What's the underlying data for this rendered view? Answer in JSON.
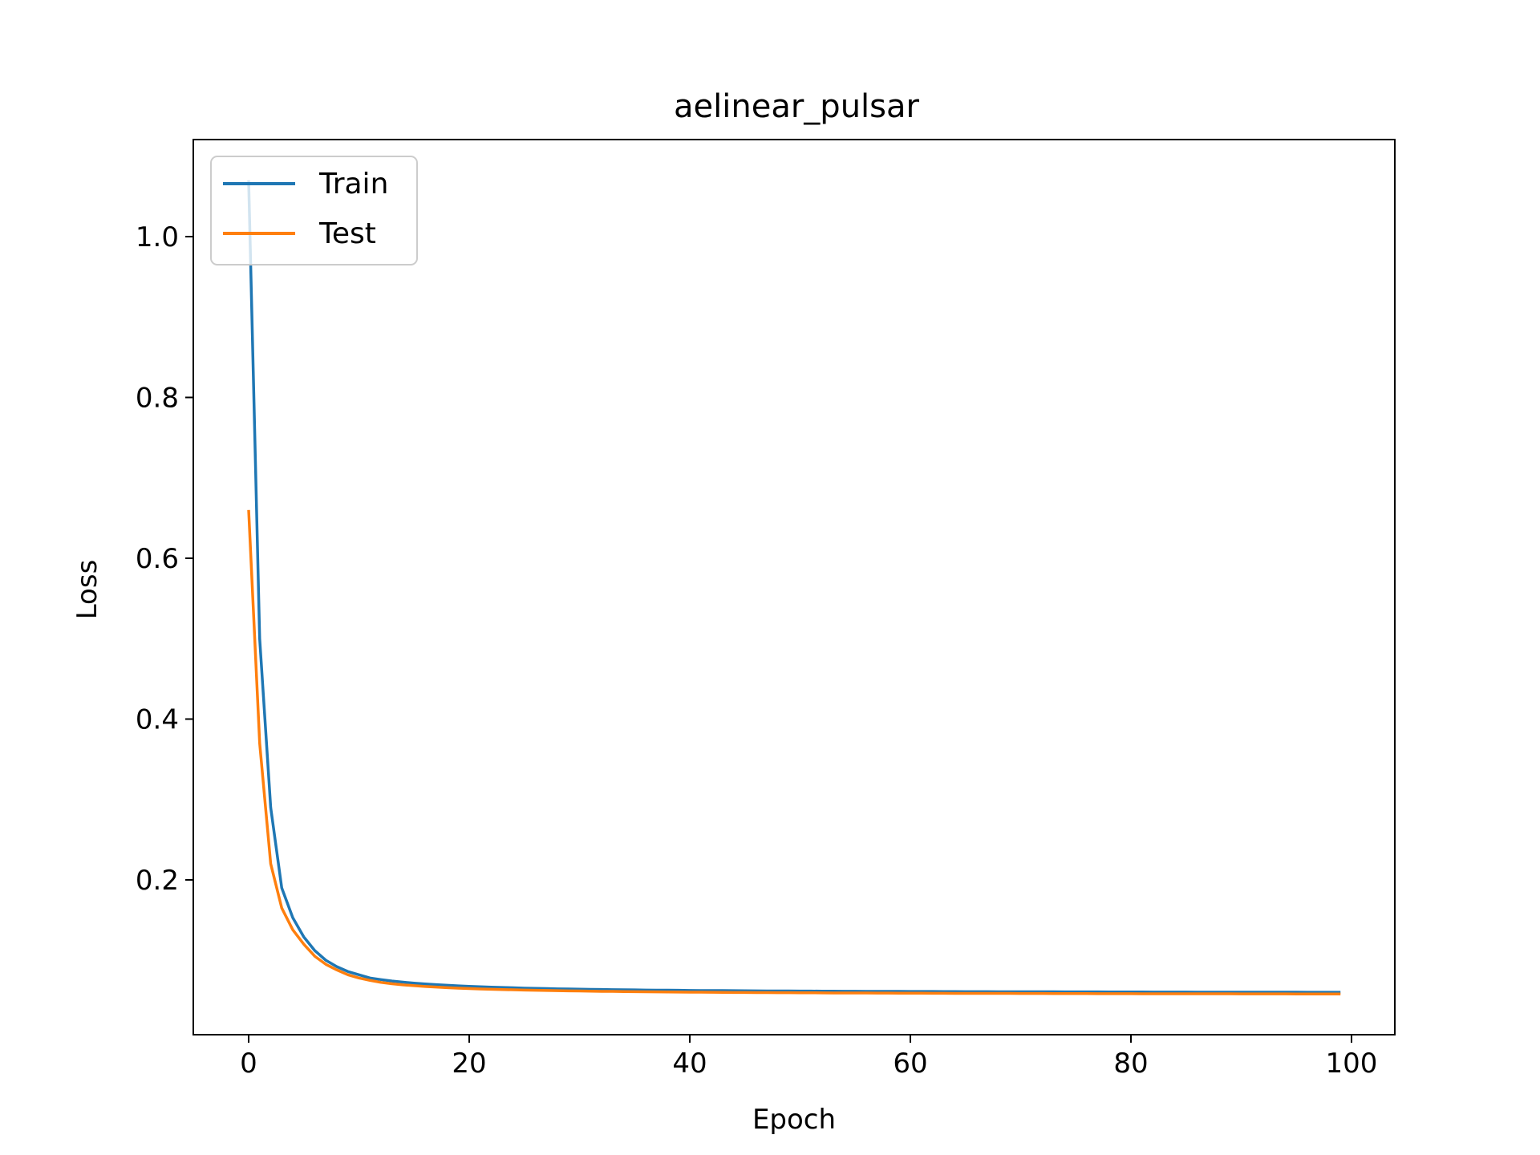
{
  "chart_data": {
    "type": "line",
    "title": "aelinear_pulsar",
    "xlabel": "Epoch",
    "ylabel": "Loss",
    "xlim": [
      -5,
      104
    ],
    "ylim": [
      0.01,
      1.12
    ],
    "xticks": [
      0,
      20,
      40,
      60,
      80,
      100
    ],
    "yticks": [
      0.2,
      0.4,
      0.6,
      0.8,
      1.0
    ],
    "xtick_labels": [
      "0",
      "20",
      "40",
      "60",
      "80",
      "100"
    ],
    "ytick_labels": [
      "0.2",
      "0.4",
      "0.6",
      "0.8",
      "1.0"
    ],
    "grid": false,
    "legend_position": "upper-left",
    "x": [
      0,
      1,
      2,
      3,
      4,
      5,
      6,
      7,
      8,
      9,
      10,
      11,
      12,
      13,
      14,
      15,
      16,
      17,
      18,
      19,
      20,
      21,
      22,
      23,
      24,
      25,
      26,
      27,
      28,
      29,
      30,
      31,
      32,
      33,
      34,
      35,
      36,
      37,
      38,
      39,
      40,
      41,
      42,
      43,
      44,
      45,
      46,
      47,
      48,
      49,
      50,
      51,
      52,
      53,
      54,
      55,
      56,
      57,
      58,
      59,
      60,
      61,
      62,
      63,
      64,
      65,
      66,
      67,
      68,
      69,
      70,
      71,
      72,
      73,
      74,
      75,
      76,
      77,
      78,
      79,
      80,
      81,
      82,
      83,
      84,
      85,
      86,
      87,
      88,
      89,
      90,
      91,
      92,
      93,
      94,
      95,
      96,
      97,
      98,
      99
    ],
    "series": [
      {
        "name": "Train",
        "color": "#1f77b4",
        "values": [
          1.07,
          0.5,
          0.29,
          0.19,
          0.153,
          0.129,
          0.112,
          0.1,
          0.092,
          0.086,
          0.082,
          0.078,
          0.076,
          0.0742,
          0.0728,
          0.0716,
          0.0706,
          0.0697,
          0.0689,
          0.0682,
          0.0676,
          0.0671,
          0.0666,
          0.0662,
          0.0658,
          0.0654,
          0.0651,
          0.0648,
          0.0645,
          0.0643,
          0.0641,
          0.0639,
          0.0637,
          0.0635,
          0.0633,
          0.0632,
          0.063,
          0.0629,
          0.0628,
          0.0627,
          0.0625,
          0.0624,
          0.0623,
          0.0623,
          0.0622,
          0.0621,
          0.062,
          0.0619,
          0.0619,
          0.0618,
          0.0617,
          0.0617,
          0.0616,
          0.0616,
          0.0615,
          0.0615,
          0.0614,
          0.0614,
          0.0613,
          0.0613,
          0.0612,
          0.0612,
          0.0612,
          0.0611,
          0.0611,
          0.061,
          0.061,
          0.061,
          0.0609,
          0.0609,
          0.0609,
          0.0608,
          0.0608,
          0.0608,
          0.0607,
          0.0607,
          0.0607,
          0.0607,
          0.0606,
          0.0606,
          0.0606,
          0.0606,
          0.0605,
          0.0605,
          0.0605,
          0.0605,
          0.0604,
          0.0604,
          0.0604,
          0.0604,
          0.0604,
          0.0603,
          0.0603,
          0.0603,
          0.0603,
          0.0603,
          0.0602,
          0.0602,
          0.0602,
          0.0602
        ]
      },
      {
        "name": "Test",
        "color": "#ff7f0e",
        "values": [
          0.66,
          0.37,
          0.22,
          0.165,
          0.138,
          0.12,
          0.105,
          0.095,
          0.088,
          0.082,
          0.078,
          0.075,
          0.0725,
          0.0708,
          0.0695,
          0.0684,
          0.0675,
          0.0667,
          0.066,
          0.0654,
          0.0649,
          0.0644,
          0.064,
          0.0636,
          0.0633,
          0.063,
          0.0627,
          0.0625,
          0.0622,
          0.062,
          0.0618,
          0.0616,
          0.0614,
          0.0613,
          0.0611,
          0.061,
          0.0609,
          0.0607,
          0.0606,
          0.0605,
          0.0604,
          0.0603,
          0.0602,
          0.0601,
          0.06,
          0.06,
          0.0599,
          0.0598,
          0.0597,
          0.0597,
          0.0596,
          0.0596,
          0.0595,
          0.0594,
          0.0594,
          0.0593,
          0.0593,
          0.0592,
          0.0592,
          0.0591,
          0.0591,
          0.0591,
          0.059,
          0.059,
          0.0589,
          0.0589,
          0.0589,
          0.0588,
          0.0588,
          0.0588,
          0.0587,
          0.0587,
          0.0587,
          0.0586,
          0.0586,
          0.0586,
          0.0586,
          0.0585,
          0.0585,
          0.0585,
          0.0585,
          0.0584,
          0.0584,
          0.0584,
          0.0584,
          0.0583,
          0.0583,
          0.0583,
          0.0583,
          0.0583,
          0.0582,
          0.0582,
          0.0582,
          0.0582,
          0.0582,
          0.0581,
          0.0581,
          0.0581,
          0.0581,
          0.0581
        ]
      }
    ]
  }
}
